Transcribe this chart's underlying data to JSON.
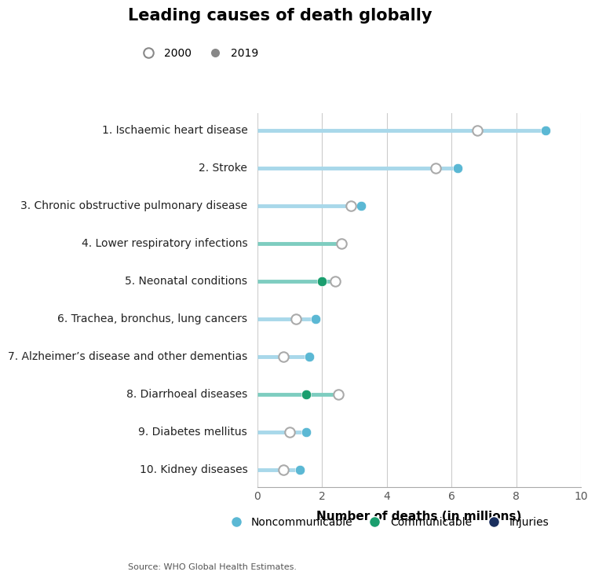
{
  "title": "Leading causes of death globally",
  "subtitle_2000": "2000",
  "subtitle_2019": "2019",
  "xlabel": "Number of deaths (in millions)",
  "source": "Source: WHO Global Health Estimates.",
  "categories": [
    "1. Ischaemic heart disease",
    "2. Stroke",
    "3. Chronic obstructive pulmonary disease",
    "4. Lower respiratory infections",
    "5. Neonatal conditions",
    "6. Trachea, bronchus, lung cancers",
    "7. Alzheimer’s disease and other dementias",
    "8. Diarrhoeal diseases",
    "9. Diabetes mellitus",
    "10. Kidney diseases"
  ],
  "values_2000": [
    6.8,
    5.5,
    2.9,
    2.6,
    2.4,
    1.2,
    0.8,
    2.5,
    1.0,
    0.8
  ],
  "values_2019": [
    8.9,
    6.2,
    3.2,
    2.6,
    2.0,
    1.8,
    1.6,
    1.5,
    1.5,
    1.3
  ],
  "category_types": [
    "noncommunicable",
    "noncommunicable",
    "noncommunicable",
    "communicable",
    "communicable",
    "noncommunicable",
    "noncommunicable",
    "communicable",
    "noncommunicable",
    "noncommunicable"
  ],
  "colors": {
    "noncommunicable": "#5bb8d4",
    "communicable": "#1a9e6e",
    "injuries": "#1a2f5e"
  },
  "line_color_noncommunicable": "#a8d8ea",
  "line_color_communicable": "#7ecdc0",
  "background_color": "#ffffff",
  "xlim": [
    0,
    10
  ],
  "xticks": [
    0,
    2,
    4,
    6,
    8,
    10
  ],
  "legend_noncommunicable": "Noncommunicable",
  "legend_communicable": "Communicable",
  "legend_injuries": "Injuries",
  "title_fontsize": 15,
  "label_fontsize": 10,
  "axis_fontsize": 10
}
